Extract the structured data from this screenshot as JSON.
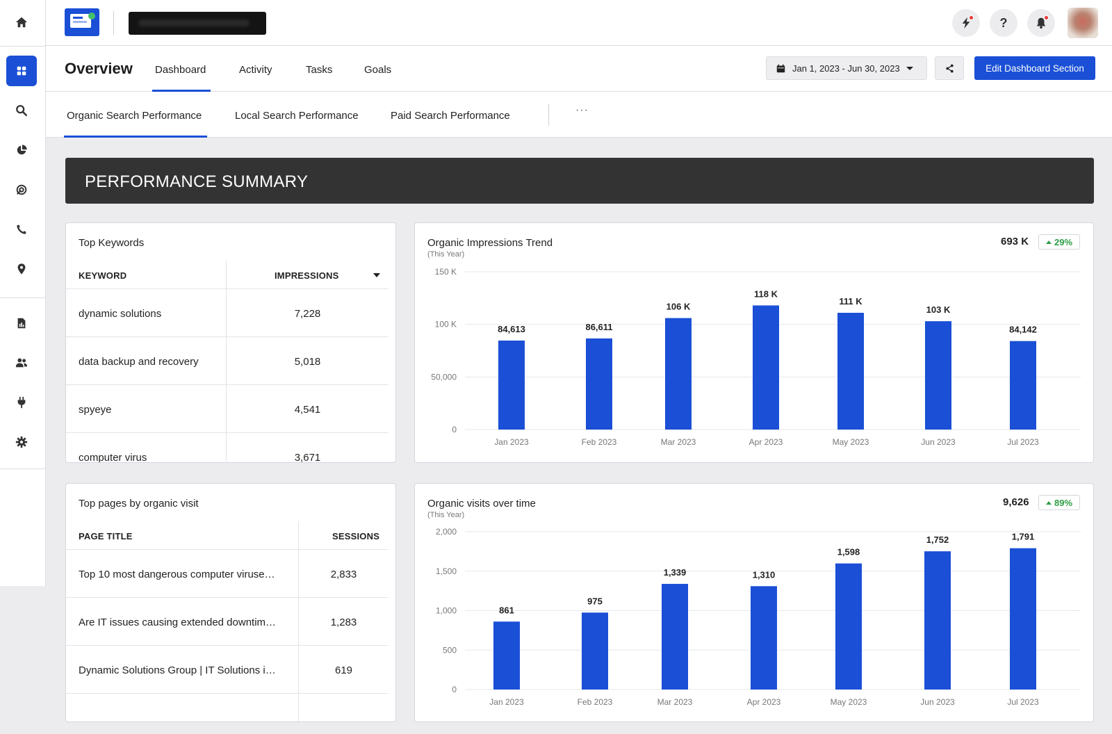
{
  "sidebar": {
    "items": [
      {
        "name": "home-icon"
      },
      {
        "name": "dashboard-grid-icon"
      },
      {
        "name": "search-icon"
      },
      {
        "name": "pie-chart-icon"
      },
      {
        "name": "target-icon"
      },
      {
        "name": "phone-icon"
      },
      {
        "name": "location-pin-icon"
      },
      {
        "name": "report-document-icon"
      },
      {
        "name": "users-icon"
      },
      {
        "name": "plug-icon"
      },
      {
        "name": "gear-icon"
      }
    ]
  },
  "topbar": {
    "accent": "#1a4fd6"
  },
  "header": {
    "title": "Overview",
    "tabs": [
      {
        "label": "Dashboard",
        "active": true
      },
      {
        "label": "Activity"
      },
      {
        "label": "Tasks"
      },
      {
        "label": "Goals"
      }
    ],
    "date_range": "Jan 1, 2023 - Jun 30, 2023",
    "edit_label": "Edit Dashboard Section"
  },
  "subtabs": {
    "items": [
      {
        "label": "Organic Search Performance",
        "active": true
      },
      {
        "label": "Local Search Performance"
      },
      {
        "label": "Paid Search Performance"
      }
    ],
    "more": "···"
  },
  "summary": {
    "title": "PERFORMANCE SUMMARY"
  },
  "keywords": {
    "title": "Top Keywords",
    "columns": [
      "KEYWORD",
      "IMPRESSIONS"
    ],
    "rows": [
      {
        "keyword": "dynamic solutions",
        "impressions": "7,228"
      },
      {
        "keyword": "data backup and recovery",
        "impressions": "5,018"
      },
      {
        "keyword": "spyeye",
        "impressions": "4,541"
      },
      {
        "keyword": "computer virus",
        "impressions": "3,671"
      }
    ]
  },
  "pages": {
    "title": "Top pages by organic visit",
    "columns": [
      "PAGE TITLE",
      "SESSIONS"
    ],
    "rows": [
      {
        "title": "Top 10 most dangerous computer viruse…",
        "sessions": "2,833"
      },
      {
        "title": "Are IT issues causing extended downtim…",
        "sessions": "1,283"
      },
      {
        "title": "Dynamic Solutions Group | IT Solutions i…",
        "sessions": "619"
      }
    ]
  },
  "chart_data": [
    {
      "type": "bar",
      "title": "Organic Impressions Trend",
      "subtitle": "(This Year)",
      "kpi": "693 K",
      "delta": "29%",
      "categories": [
        "Jan 2023",
        "Feb 2023",
        "Mar 2023",
        "Apr 2023",
        "May 2023",
        "Jun 2023",
        "Jul 2023"
      ],
      "values": [
        84613,
        86611,
        106000,
        118000,
        111000,
        103000,
        84142
      ],
      "labels": [
        "84,613",
        "86,611",
        "106 K",
        "118 K",
        "111 K",
        "103 K",
        "84,142"
      ],
      "ylim": [
        0,
        150000
      ],
      "yticks": [
        0,
        50000,
        100000,
        150000
      ],
      "ytick_labels": [
        "0",
        "50,000",
        "100 K",
        "150 K"
      ],
      "grid": true,
      "color": "#1a4fd6"
    },
    {
      "type": "bar",
      "title": "Organic visits over time",
      "subtitle": "(This Year)",
      "kpi": "9,626",
      "delta": "89%",
      "categories": [
        "Jan 2023",
        "Feb 2023",
        "Mar 2023",
        "Apr 2023",
        "May 2023",
        "Jun 2023",
        "Jul 2023"
      ],
      "values": [
        861,
        975,
        1339,
        1310,
        1598,
        1752,
        1791
      ],
      "labels": [
        "861",
        "975",
        "1,339",
        "1,310",
        "1,598",
        "1,752",
        "1,791"
      ],
      "ylim": [
        0,
        2000
      ],
      "yticks": [
        0,
        500,
        1000,
        1500,
        2000
      ],
      "ytick_labels": [
        "0",
        "500",
        "1,000",
        "1,500",
        "2,000"
      ],
      "grid": true,
      "color": "#1a4fd6"
    }
  ]
}
